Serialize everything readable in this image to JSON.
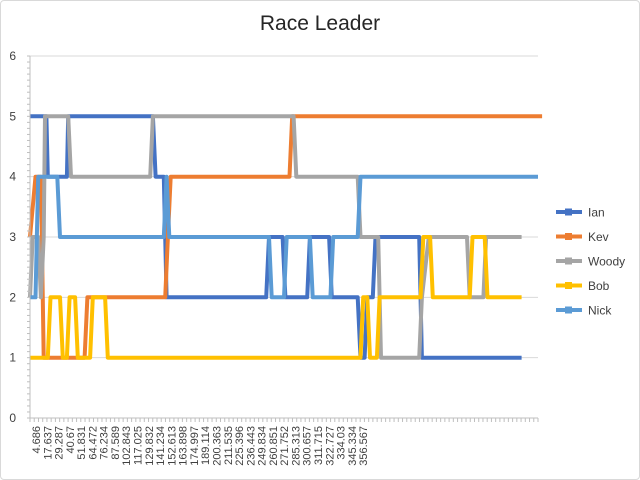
{
  "chart_data": {
    "type": "line",
    "title": "Race Leader",
    "xlabel": "",
    "ylabel": "",
    "ylim": [
      0,
      6
    ],
    "y_ticks": [
      0,
      1,
      2,
      3,
      4,
      5,
      6
    ],
    "x_range": [
      0,
      372
    ],
    "x_tick_labels": [
      "4.686",
      "17.637",
      "29.287",
      "40.67",
      "51.831",
      "64.472",
      "76.234",
      "87.589",
      "102.843",
      "117.025",
      "129.832",
      "141.234",
      "152.613",
      "163.898",
      "174.997",
      "189.114",
      "200.363",
      "211.535",
      "225.396",
      "236.443",
      "249.834",
      "260.851",
      "271.752",
      "285.313",
      "300.657",
      "311.715",
      "322.727",
      "334.03",
      "345.334",
      "356.567"
    ],
    "legend_position": "right",
    "grid": "horizontal",
    "series": [
      {
        "name": "Ian",
        "color": "#4472C4",
        "points": [
          [
            0,
            5
          ],
          [
            12,
            5
          ],
          [
            13,
            4
          ],
          [
            27,
            4
          ],
          [
            28,
            5
          ],
          [
            90,
            5
          ],
          [
            92,
            4
          ],
          [
            98,
            4
          ],
          [
            100,
            2
          ],
          [
            173,
            2
          ],
          [
            175,
            3
          ],
          [
            185,
            3
          ],
          [
            187,
            2
          ],
          [
            203,
            2
          ],
          [
            205,
            3
          ],
          [
            219,
            3
          ],
          [
            221,
            2
          ],
          [
            240,
            2
          ],
          [
            242,
            1
          ],
          [
            245,
            1
          ],
          [
            247,
            2
          ],
          [
            251,
            2
          ],
          [
            253,
            3
          ],
          [
            285,
            3
          ],
          [
            287,
            1
          ],
          [
            360,
            1
          ]
        ]
      },
      {
        "name": "Kev",
        "color": "#ED7D31",
        "points": [
          [
            0,
            3
          ],
          [
            4,
            4
          ],
          [
            8,
            4
          ],
          [
            10,
            1
          ],
          [
            40,
            1
          ],
          [
            42,
            2
          ],
          [
            99,
            2
          ],
          [
            101,
            3
          ],
          [
            103,
            4
          ],
          [
            190,
            4
          ],
          [
            192,
            5
          ],
          [
            375,
            5
          ]
        ]
      },
      {
        "name": "Woody",
        "color": "#A5A5A5",
        "points": [
          [
            0,
            2
          ],
          [
            2,
            3
          ],
          [
            6,
            3
          ],
          [
            8,
            2
          ],
          [
            10,
            3
          ],
          [
            11,
            5
          ],
          [
            28,
            5
          ],
          [
            30,
            4
          ],
          [
            88,
            4
          ],
          [
            90,
            5
          ],
          [
            193,
            5
          ],
          [
            195,
            4
          ],
          [
            240,
            4
          ],
          [
            242,
            3
          ],
          [
            255,
            3
          ],
          [
            257,
            1
          ],
          [
            285,
            1
          ],
          [
            287,
            2
          ],
          [
            292,
            3
          ],
          [
            320,
            3
          ],
          [
            322,
            2
          ],
          [
            332,
            2
          ],
          [
            334,
            3
          ],
          [
            360,
            3
          ]
        ]
      },
      {
        "name": "Bob",
        "color": "#FFC000",
        "points": [
          [
            0,
            1
          ],
          [
            13,
            1
          ],
          [
            15,
            2
          ],
          [
            22,
            2
          ],
          [
            24,
            1
          ],
          [
            27,
            1
          ],
          [
            29,
            2
          ],
          [
            33,
            2
          ],
          [
            35,
            1
          ],
          [
            44,
            1
          ],
          [
            46,
            2
          ],
          [
            55,
            2
          ],
          [
            57,
            1
          ],
          [
            242,
            1
          ],
          [
            244,
            2
          ],
          [
            247,
            2
          ],
          [
            249,
            1
          ],
          [
            254,
            1
          ],
          [
            256,
            2
          ],
          [
            286,
            2
          ],
          [
            288,
            3
          ],
          [
            293,
            3
          ],
          [
            295,
            2
          ],
          [
            322,
            2
          ],
          [
            324,
            3
          ],
          [
            333,
            3
          ],
          [
            335,
            2
          ],
          [
            360,
            2
          ]
        ]
      },
      {
        "name": "Nick",
        "color": "#5B9BD5",
        "points": [
          [
            0,
            2
          ],
          [
            4,
            2
          ],
          [
            6,
            4
          ],
          [
            20,
            4
          ],
          [
            22,
            3
          ],
          [
            98,
            3
          ],
          [
            100,
            4
          ],
          [
            102,
            3
          ],
          [
            175,
            3
          ],
          [
            177,
            2
          ],
          [
            186,
            2
          ],
          [
            188,
            3
          ],
          [
            205,
            3
          ],
          [
            207,
            2
          ],
          [
            220,
            2
          ],
          [
            222,
            3
          ],
          [
            240,
            3
          ],
          [
            242,
            4
          ],
          [
            372,
            4
          ]
        ]
      }
    ]
  }
}
